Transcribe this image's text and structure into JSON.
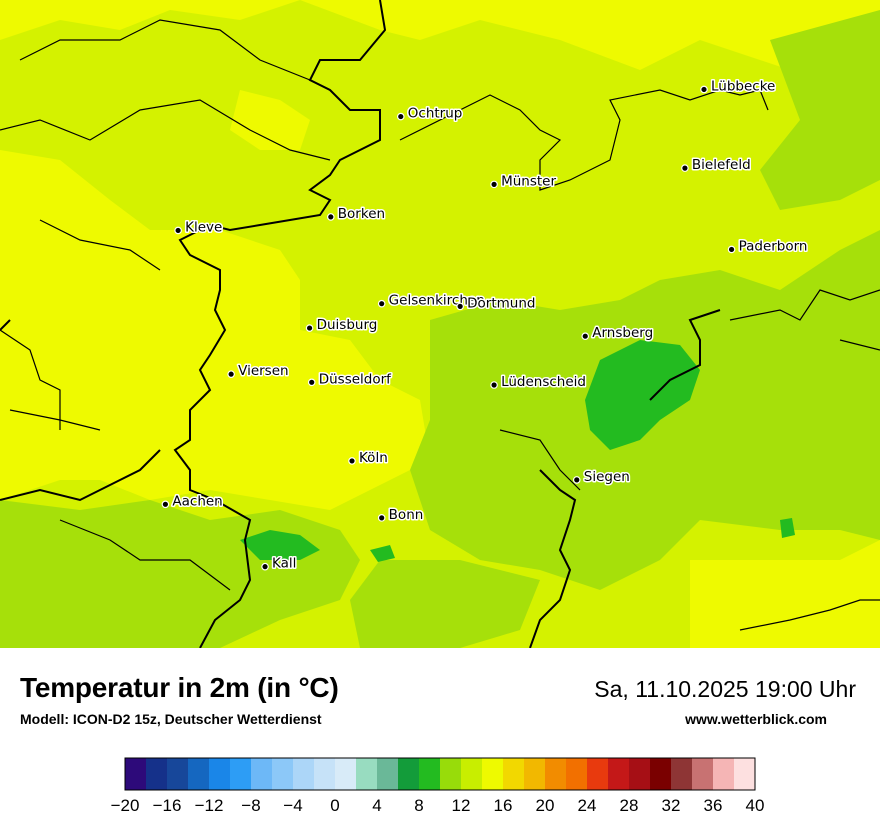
{
  "map": {
    "cities": [
      {
        "name": "Ochtrup",
        "lat": 52.21,
        "lon": 7.19
      },
      {
        "name": "Lübbecke",
        "lat": 52.31,
        "lon": 8.62
      },
      {
        "name": "Bielefeld",
        "lat": 52.02,
        "lon": 8.53
      },
      {
        "name": "Münster",
        "lat": 51.96,
        "lon": 7.63
      },
      {
        "name": "Borken",
        "lat": 51.84,
        "lon": 6.86
      },
      {
        "name": "Kleve",
        "lat": 51.79,
        "lon": 6.14
      },
      {
        "name": "Paderborn",
        "lat": 51.72,
        "lon": 8.75
      },
      {
        "name": "Gelsenkirchen",
        "lat": 51.52,
        "lon": 7.1
      },
      {
        "name": "Dortmund",
        "lat": 51.51,
        "lon": 7.47
      },
      {
        "name": "Duisburg",
        "lat": 51.43,
        "lon": 6.76
      },
      {
        "name": "Arnsberg",
        "lat": 51.4,
        "lon": 8.06
      },
      {
        "name": "Viersen",
        "lat": 51.26,
        "lon": 6.39
      },
      {
        "name": "Düsseldorf",
        "lat": 51.23,
        "lon": 6.77
      },
      {
        "name": "Lüdenscheid",
        "lat": 51.22,
        "lon": 7.63
      },
      {
        "name": "Köln",
        "lat": 50.94,
        "lon": 6.96
      },
      {
        "name": "Siegen",
        "lat": 50.87,
        "lon": 8.02
      },
      {
        "name": "Aachen",
        "lat": 50.78,
        "lon": 6.08
      },
      {
        "name": "Bonn",
        "lat": 50.73,
        "lon": 7.1
      },
      {
        "name": "Kall",
        "lat": 50.55,
        "lon": 6.55
      }
    ]
  },
  "footer": {
    "title": "Temperatur in 2m (in °C)",
    "subtitle": "Modell: ICON-D2 15z, Deutscher Wetterdienst",
    "datetime": "Sa, 11.10.2025 19:00 Uhr",
    "website": "www.wetterblick.com"
  },
  "legend": {
    "min": -20,
    "max": 40,
    "step": 2,
    "ticks": [
      "−20",
      "−16",
      "−12",
      "−8",
      "−4",
      "0",
      "4",
      "8",
      "12",
      "16",
      "20",
      "24",
      "28",
      "32",
      "36",
      "40"
    ],
    "colors": [
      "#2d0a7a",
      "#15318a",
      "#17479a",
      "#1567c0",
      "#1a86e8",
      "#2d9df5",
      "#6db8f7",
      "#8cc8f8",
      "#acd6f8",
      "#c6e2f8",
      "#d8ebf8",
      "#98dcc0",
      "#6ab898",
      "#139c3a",
      "#23bb20",
      "#98dc0a",
      "#c8ee00",
      "#eefa00",
      "#f2d800",
      "#f2b800",
      "#f28c00",
      "#f27000",
      "#e83a0e",
      "#c41818",
      "#a60f15",
      "#7a0000",
      "#8e3535",
      "#c87272",
      "#f5b5b5",
      "#fde0e0"
    ]
  }
}
